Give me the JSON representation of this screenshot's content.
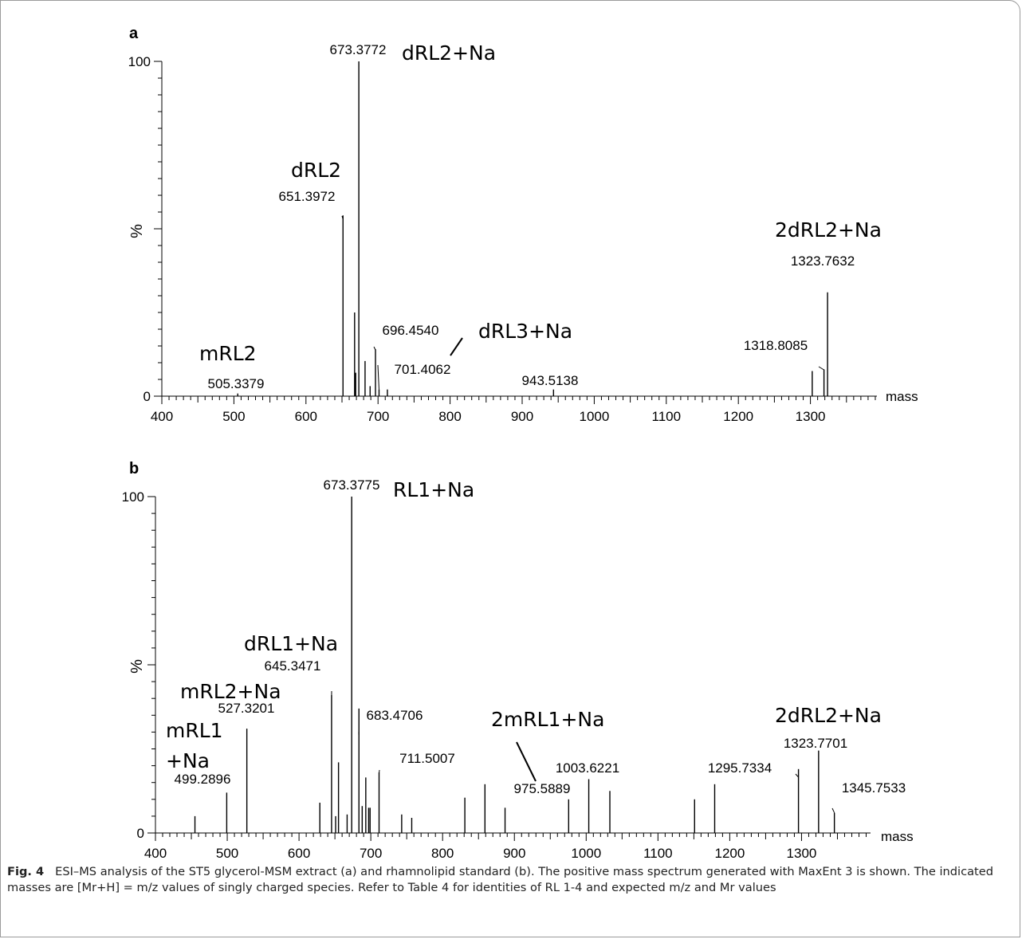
{
  "chart_data": [
    {
      "type": "bar",
      "panel": "a",
      "xlabel": "mass",
      "ylabel": "%",
      "xlim": [
        400,
        1400
      ],
      "ylim": [
        0,
        100
      ],
      "x_ticks": [
        "400",
        "500",
        "600",
        "700",
        "800",
        "900",
        "1000",
        "1100",
        "1200",
        "1300"
      ],
      "y_ticks": [
        "0",
        "100"
      ],
      "peaks": [
        {
          "mass": 505.3379,
          "intensity": 0.8
        },
        {
          "mass": 651.3972,
          "intensity": 54
        },
        {
          "mass": 667.5,
          "intensity": 25
        },
        {
          "mass": 669.0,
          "intensity": 7
        },
        {
          "mass": 673.3772,
          "intensity": 100
        },
        {
          "mass": 682.0,
          "intensity": 10.5
        },
        {
          "mass": 689.0,
          "intensity": 3
        },
        {
          "mass": 696.454,
          "intensity": 14
        },
        {
          "mass": 701.4062,
          "intensity": 2
        },
        {
          "mass": 713.0,
          "intensity": 2
        },
        {
          "mass": 943.5138,
          "intensity": 2
        },
        {
          "mass": 1302.5,
          "intensity": 7.5
        },
        {
          "mass": 1318.8085,
          "intensity": 8
        },
        {
          "mass": 1323.7632,
          "intensity": 31
        }
      ],
      "peak_labels": [
        {
          "text": "673.3772",
          "mass": 673.3772
        },
        {
          "text": "651.3972",
          "mass": 651.3972
        },
        {
          "text": "696.4540",
          "mass": 696.454
        },
        {
          "text": "701.4062",
          "mass": 701.4062
        },
        {
          "text": "505.3379",
          "mass": 505.3379
        },
        {
          "text": "943.5138",
          "mass": 943.5138
        },
        {
          "text": "1318.8085",
          "mass": 1318.8085
        },
        {
          "text": "1323.7632",
          "mass": 1323.7632
        }
      ],
      "annotations": [
        "dRL2+Na",
        "dRL2",
        "dRL3+Na",
        "mRL2",
        "2dRL2+Na"
      ]
    },
    {
      "type": "bar",
      "panel": "b",
      "xlabel": "mass",
      "ylabel": "%",
      "xlim": [
        400,
        1400
      ],
      "ylim": [
        0,
        100
      ],
      "x_ticks": [
        "400",
        "500",
        "600",
        "700",
        "800",
        "900",
        "1000",
        "1100",
        "1200",
        "1300"
      ],
      "y_ticks": [
        "0",
        "100"
      ],
      "peaks": [
        {
          "mass": 455.0,
          "intensity": 5
        },
        {
          "mass": 499.2896,
          "intensity": 12
        },
        {
          "mass": 527.3201,
          "intensity": 31
        },
        {
          "mass": 629.0,
          "intensity": 9
        },
        {
          "mass": 645.3471,
          "intensity": 41
        },
        {
          "mass": 651.0,
          "intensity": 5
        },
        {
          "mass": 655.0,
          "intensity": 21
        },
        {
          "mass": 667.0,
          "intensity": 5.5
        },
        {
          "mass": 673.3775,
          "intensity": 100
        },
        {
          "mass": 683.4706,
          "intensity": 37
        },
        {
          "mass": 688.0,
          "intensity": 8
        },
        {
          "mass": 693.0,
          "intensity": 16.5
        },
        {
          "mass": 697.0,
          "intensity": 7.5
        },
        {
          "mass": 699.0,
          "intensity": 7.5
        },
        {
          "mass": 711.5007,
          "intensity": 18
        },
        {
          "mass": 743.0,
          "intensity": 5.5
        },
        {
          "mass": 757.0,
          "intensity": 4.5
        },
        {
          "mass": 831.0,
          "intensity": 10.5
        },
        {
          "mass": 859.0,
          "intensity": 14.5
        },
        {
          "mass": 887.0,
          "intensity": 7.5
        },
        {
          "mass": 975.5889,
          "intensity": 10
        },
        {
          "mass": 1003.6221,
          "intensity": 16
        },
        {
          "mass": 1033.0,
          "intensity": 12.5
        },
        {
          "mass": 1151.0,
          "intensity": 10
        },
        {
          "mass": 1179.0,
          "intensity": 14.5
        },
        {
          "mass": 1295.7334,
          "intensity": 19
        },
        {
          "mass": 1323.7701,
          "intensity": 24.5
        },
        {
          "mass": 1345.7533,
          "intensity": 6
        }
      ],
      "peak_labels": [
        {
          "text": "673.3775",
          "mass": 673.3775
        },
        {
          "text": "645.3471",
          "mass": 645.3471
        },
        {
          "text": "527.3201",
          "mass": 527.3201
        },
        {
          "text": "683.4706",
          "mass": 683.4706
        },
        {
          "text": "711.5007",
          "mass": 711.5007
        },
        {
          "text": "499.2896",
          "mass": 499.2896
        },
        {
          "text": "975.5889",
          "mass": 975.5889
        },
        {
          "text": "1003.6221",
          "mass": 1003.6221
        },
        {
          "text": "1295.7334",
          "mass": 1295.7334
        },
        {
          "text": "1323.7701",
          "mass": 1323.7701
        },
        {
          "text": "1345.7533",
          "mass": 1345.7533
        }
      ],
      "annotations": [
        "RL1+Na",
        "dRL1+Na",
        "mRL2+Na",
        "mRL1",
        "+Na",
        "2mRL1+Na",
        "2dRL2+Na"
      ]
    }
  ],
  "caption": {
    "fig_number": "Fig. 4",
    "text": "ESI–MS analysis of the ST5 glycerol-MSM extract (a) and rhamnolipid standard (b). The positive mass spectrum generated with MaxEnt 3 is shown. The indicated masses are [Mr+H] = m/z values of singly charged species. Refer to Table 4 for identities of RL 1-4 and expected m/z and Mr values"
  }
}
